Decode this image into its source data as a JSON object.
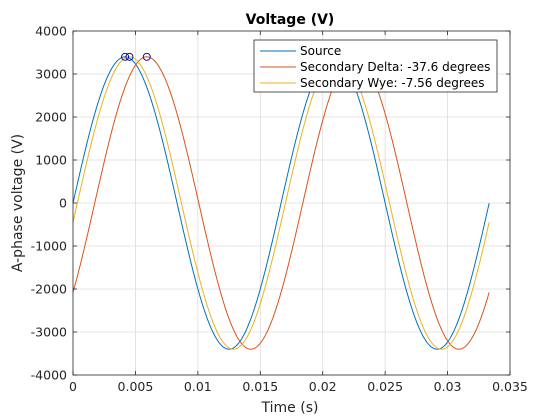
{
  "chart_data": {
    "type": "line",
    "title": "Voltage (V)",
    "xlabel": "Time (s)",
    "ylabel": "A-phase voltage (V)",
    "xlim": [
      0,
      0.035
    ],
    "ylim": [
      -4000,
      4000
    ],
    "xticks": [
      0,
      0.005,
      0.01,
      0.015,
      0.02,
      0.025,
      0.03,
      0.035
    ],
    "xtick_labels": [
      "0",
      "0.005",
      "0.01",
      "0.015",
      "0.02",
      "0.025",
      "0.03",
      "0.035"
    ],
    "yticks": [
      -4000,
      -3000,
      -2000,
      -1000,
      0,
      1000,
      2000,
      3000,
      4000
    ],
    "ytick_labels": [
      "-4000",
      "-3000",
      "-2000",
      "-1000",
      "0",
      "1000",
      "2000",
      "3000",
      "4000"
    ],
    "grid": true,
    "legend_position": "top-right",
    "frequency_hz": 60,
    "amplitude_v": 3400,
    "x_end": 0.03333,
    "series": [
      {
        "name": "Source",
        "color": "#0072BD",
        "phase_deg": 0,
        "peak_marker": {
          "x": 0.00417,
          "y": 3400
        }
      },
      {
        "name": "Secondary Delta: -37.6 degrees",
        "color": "#D95319",
        "phase_deg": -37.6,
        "peak_marker": {
          "x": 0.00591,
          "y": 3400
        }
      },
      {
        "name": "Secondary Wye: -7.56 degrees",
        "color": "#EDB120",
        "phase_deg": -7.56,
        "peak_marker": {
          "x": 0.00452,
          "y": 3400
        }
      }
    ]
  }
}
